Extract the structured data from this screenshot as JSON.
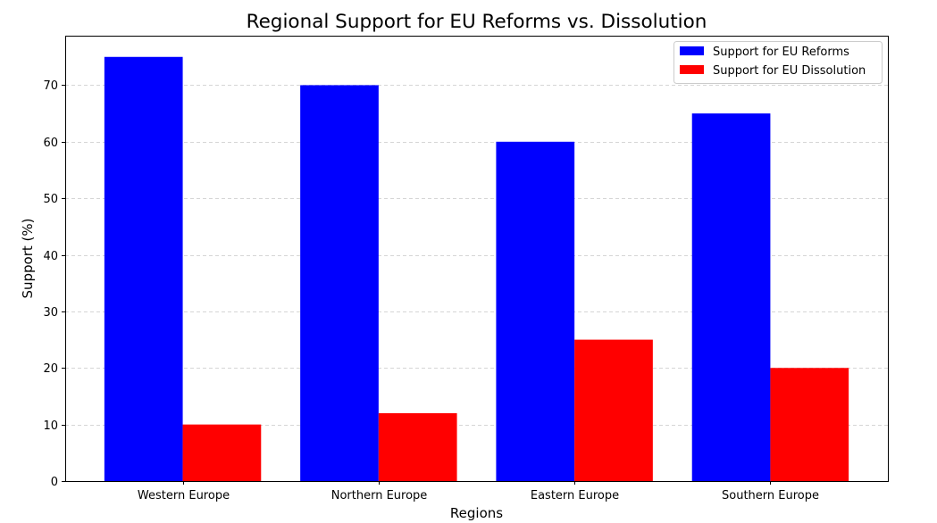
{
  "chart_data": {
    "type": "bar",
    "title": "Regional Support for EU Reforms vs. Dissolution",
    "xlabel": "Regions",
    "ylabel": "Support (%)",
    "categories": [
      "Western Europe",
      "Northern Europe",
      "Eastern Europe",
      "Southern Europe"
    ],
    "series": [
      {
        "name": "Support for EU Reforms",
        "values": [
          75,
          70,
          60,
          65
        ],
        "color": "#0000ff"
      },
      {
        "name": "Support for EU Dissolution",
        "values": [
          10,
          12,
          25,
          20
        ],
        "color": "#ff0000"
      }
    ],
    "ylim": [
      0,
      78.75
    ],
    "yticks": [
      0,
      10,
      20,
      30,
      40,
      50,
      60,
      70
    ],
    "grid": "y-axis dashed",
    "legend_position": "top-right"
  }
}
